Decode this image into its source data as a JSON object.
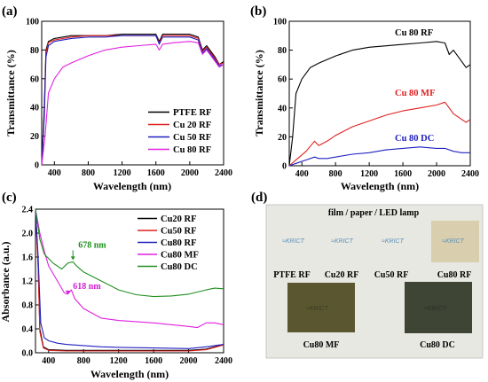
{
  "panels": {
    "a": {
      "label": "(a)",
      "chart_data": {
        "type": "line",
        "xlabel": "Wavelength (nm)",
        "ylabel": "Transmittance (%)",
        "xlim": [
          250,
          2400
        ],
        "ylim": [
          0,
          100
        ],
        "xticks": [
          "400",
          "800",
          "1200",
          "1600",
          "2000",
          "2400"
        ],
        "yticks": [
          "0",
          "20",
          "40",
          "60",
          "80",
          "100"
        ],
        "legend_position": "bottom-right",
        "series": [
          {
            "name": "PTFE RF",
            "color": "#000000",
            "points": [
              [
                250,
                0
              ],
              [
                280,
                40
              ],
              [
                300,
                80
              ],
              [
                330,
                86
              ],
              [
                400,
                88
              ],
              [
                600,
                90
              ],
              [
                800,
                90
              ],
              [
                1000,
                90
              ],
              [
                1200,
                91
              ],
              [
                1400,
                91
              ],
              [
                1600,
                91
              ],
              [
                1640,
                86
              ],
              [
                1680,
                91
              ],
              [
                1800,
                91
              ],
              [
                2000,
                91
              ],
              [
                2100,
                89
              ],
              [
                2150,
                80
              ],
              [
                2200,
                83
              ],
              [
                2300,
                75
              ],
              [
                2350,
                70
              ],
              [
                2400,
                72
              ]
            ]
          },
          {
            "name": "Cu 20 RF",
            "color": "#e02020",
            "points": [
              [
                250,
                0
              ],
              [
                280,
                35
              ],
              [
                300,
                78
              ],
              [
                330,
                85
              ],
              [
                400,
                87
              ],
              [
                600,
                89
              ],
              [
                800,
                90
              ],
              [
                1000,
                90
              ],
              [
                1200,
                90
              ],
              [
                1400,
                90
              ],
              [
                1600,
                90
              ],
              [
                1640,
                85
              ],
              [
                1680,
                90
              ],
              [
                1800,
                90
              ],
              [
                2000,
                90
              ],
              [
                2100,
                88
              ],
              [
                2150,
                79
              ],
              [
                2200,
                82
              ],
              [
                2300,
                74
              ],
              [
                2350,
                70
              ],
              [
                2400,
                71
              ]
            ]
          },
          {
            "name": "Cu 50 RF",
            "color": "#2020c0",
            "points": [
              [
                250,
                0
              ],
              [
                280,
                33
              ],
              [
                300,
                75
              ],
              [
                330,
                83
              ],
              [
                400,
                86
              ],
              [
                600,
                88
              ],
              [
                800,
                89
              ],
              [
                1000,
                89
              ],
              [
                1200,
                90
              ],
              [
                1400,
                90
              ],
              [
                1600,
                90
              ],
              [
                1640,
                84
              ],
              [
                1680,
                89
              ],
              [
                1800,
                89
              ],
              [
                2000,
                89
              ],
              [
                2100,
                87
              ],
              [
                2150,
                78
              ],
              [
                2200,
                81
              ],
              [
                2300,
                73
              ],
              [
                2350,
                69
              ],
              [
                2400,
                70
              ]
            ]
          },
          {
            "name": "Cu 80 RF",
            "color": "#e020e0",
            "points": [
              [
                250,
                0
              ],
              [
                290,
                20
              ],
              [
                330,
                50
              ],
              [
                400,
                60
              ],
              [
                500,
                68
              ],
              [
                600,
                71
              ],
              [
                800,
                76
              ],
              [
                1000,
                80
              ],
              [
                1200,
                82
              ],
              [
                1400,
                83
              ],
              [
                1600,
                84
              ],
              [
                1640,
                80
              ],
              [
                1680,
                84
              ],
              [
                1800,
                85
              ],
              [
                2000,
                86
              ],
              [
                2100,
                85
              ],
              [
                2150,
                77
              ],
              [
                2200,
                80
              ],
              [
                2300,
                72
              ],
              [
                2350,
                68
              ],
              [
                2400,
                70
              ]
            ]
          }
        ]
      }
    },
    "b": {
      "label": "(b)",
      "chart_data": {
        "type": "line",
        "xlabel": "Wavelength (nm)",
        "ylabel": "Transmittance (%)",
        "xlim": [
          250,
          2400
        ],
        "ylim": [
          0,
          100
        ],
        "xticks": [
          "400",
          "800",
          "1200",
          "1600",
          "2000",
          "2400"
        ],
        "yticks": [
          "0",
          "20",
          "40",
          "60",
          "80",
          "100"
        ],
        "series": [
          {
            "name": "Cu 80 RF",
            "color": "#000000",
            "points": [
              [
                250,
                0
              ],
              [
                290,
                20
              ],
              [
                330,
                50
              ],
              [
                400,
                60
              ],
              [
                500,
                68
              ],
              [
                600,
                71
              ],
              [
                800,
                76
              ],
              [
                1000,
                80
              ],
              [
                1200,
                82
              ],
              [
                1400,
                83
              ],
              [
                1600,
                84
              ],
              [
                1800,
                85
              ],
              [
                2000,
                86
              ],
              [
                2100,
                85
              ],
              [
                2150,
                77
              ],
              [
                2200,
                80
              ],
              [
                2300,
                72
              ],
              [
                2350,
                68
              ],
              [
                2400,
                70
              ]
            ]
          },
          {
            "name": "Cu 80 MF",
            "color": "#e02020",
            "points": [
              [
                250,
                0
              ],
              [
                350,
                5
              ],
              [
                450,
                10
              ],
              [
                550,
                17
              ],
              [
                600,
                14
              ],
              [
                700,
                17
              ],
              [
                800,
                21
              ],
              [
                1000,
                27
              ],
              [
                1200,
                31
              ],
              [
                1400,
                35
              ],
              [
                1600,
                38
              ],
              [
                1800,
                40
              ],
              [
                2000,
                42
              ],
              [
                2100,
                44
              ],
              [
                2150,
                40
              ],
              [
                2200,
                36
              ],
              [
                2300,
                32
              ],
              [
                2350,
                30
              ],
              [
                2400,
                32
              ]
            ]
          },
          {
            "name": "Cu 80 DC",
            "color": "#2020c0",
            "points": [
              [
                250,
                0
              ],
              [
                350,
                2
              ],
              [
                450,
                4
              ],
              [
                550,
                6
              ],
              [
                600,
                5
              ],
              [
                700,
                5
              ],
              [
                800,
                6
              ],
              [
                1000,
                8
              ],
              [
                1200,
                9
              ],
              [
                1400,
                11
              ],
              [
                1600,
                12
              ],
              [
                1800,
                13
              ],
              [
                2000,
                12
              ],
              [
                2100,
                12
              ],
              [
                2200,
                10
              ],
              [
                2300,
                9
              ],
              [
                2400,
                9
              ]
            ]
          }
        ]
      }
    },
    "c": {
      "label": "(c)",
      "chart_data": {
        "type": "line",
        "xlabel": "Wavelength (nm)",
        "ylabel": "Absorbance (a.u.)",
        "xlim": [
          250,
          2400
        ],
        "ylim": [
          0,
          2.4
        ],
        "xticks": [
          "400",
          "800",
          "1200",
          "1600",
          "2000",
          "2400"
        ],
        "yticks": [
          "0.0",
          "0.4",
          "0.8",
          "1.2",
          "1.6",
          "2.0",
          "2.4"
        ],
        "legend_position": "top-right",
        "annotations": [
          {
            "text": "678 nm",
            "x": 678,
            "y": 1.55,
            "color": "#209020"
          },
          {
            "text": "618 nm",
            "x": 618,
            "y": 0.98,
            "color": "#d020d0"
          }
        ],
        "series": [
          {
            "name": "Cu20 RF",
            "color": "#000000",
            "points": [
              [
                250,
                2.4
              ],
              [
                280,
                1.5
              ],
              [
                300,
                0.4
              ],
              [
                340,
                0.1
              ],
              [
                400,
                0.05
              ],
              [
                600,
                0.04
              ],
              [
                1000,
                0.04
              ],
              [
                1600,
                0.04
              ],
              [
                2000,
                0.04
              ],
              [
                2200,
                0.06
              ],
              [
                2400,
                0.14
              ]
            ]
          },
          {
            "name": "Cu50 RF",
            "color": "#e02020",
            "points": [
              [
                250,
                2.4
              ],
              [
                280,
                1.4
              ],
              [
                300,
                0.35
              ],
              [
                340,
                0.08
              ],
              [
                400,
                0.04
              ],
              [
                600,
                0.03
              ],
              [
                1000,
                0.03
              ],
              [
                1600,
                0.03
              ],
              [
                2000,
                0.03
              ],
              [
                2200,
                0.05
              ],
              [
                2400,
                0.13
              ]
            ]
          },
          {
            "name": "Cu80 RF",
            "color": "#2020c0",
            "points": [
              [
                250,
                2.4
              ],
              [
                280,
                1.6
              ],
              [
                310,
                0.5
              ],
              [
                350,
                0.25
              ],
              [
                400,
                0.2
              ],
              [
                500,
                0.16
              ],
              [
                600,
                0.14
              ],
              [
                800,
                0.12
              ],
              [
                1000,
                0.1
              ],
              [
                1200,
                0.09
              ],
              [
                1600,
                0.08
              ],
              [
                2000,
                0.07
              ],
              [
                2200,
                0.1
              ],
              [
                2400,
                0.14
              ]
            ]
          },
          {
            "name": "Cu80 MF",
            "color": "#e020e0",
            "points": [
              [
                250,
                2.4
              ],
              [
                300,
                2.0
              ],
              [
                350,
                1.7
              ],
              [
                400,
                1.45
              ],
              [
                500,
                1.2
              ],
              [
                580,
                1.0
              ],
              [
                618,
                0.98
              ],
              [
                660,
                1.05
              ],
              [
                700,
                0.9
              ],
              [
                800,
                0.74
              ],
              [
                1000,
                0.58
              ],
              [
                1200,
                0.54
              ],
              [
                1400,
                0.52
              ],
              [
                1600,
                0.5
              ],
              [
                1800,
                0.47
              ],
              [
                2000,
                0.44
              ],
              [
                2100,
                0.42
              ],
              [
                2200,
                0.5
              ],
              [
                2300,
                0.5
              ],
              [
                2400,
                0.47
              ]
            ]
          },
          {
            "name": "Cu80 DC",
            "color": "#209020",
            "points": [
              [
                250,
                2.4
              ],
              [
                300,
                1.9
              ],
              [
                350,
                1.65
              ],
              [
                450,
                1.5
              ],
              [
                550,
                1.4
              ],
              [
                620,
                1.5
              ],
              [
                678,
                1.52
              ],
              [
                720,
                1.45
              ],
              [
                800,
                1.35
              ],
              [
                1000,
                1.2
              ],
              [
                1200,
                1.05
              ],
              [
                1400,
                0.97
              ],
              [
                1600,
                0.94
              ],
              [
                1800,
                0.95
              ],
              [
                2000,
                0.98
              ],
              [
                2200,
                1.05
              ],
              [
                2300,
                1.08
              ],
              [
                2400,
                1.07
              ]
            ]
          }
        ]
      }
    },
    "d": {
      "label": "(d)",
      "photo_title": "film / paper / LED lamp",
      "logo_text": "KRICT",
      "samples": [
        "PTFE RF",
        "Cu20 RF",
        "Cu50 RF",
        "Cu80 RF",
        "Cu80 MF",
        "Cu80 DC"
      ]
    }
  }
}
